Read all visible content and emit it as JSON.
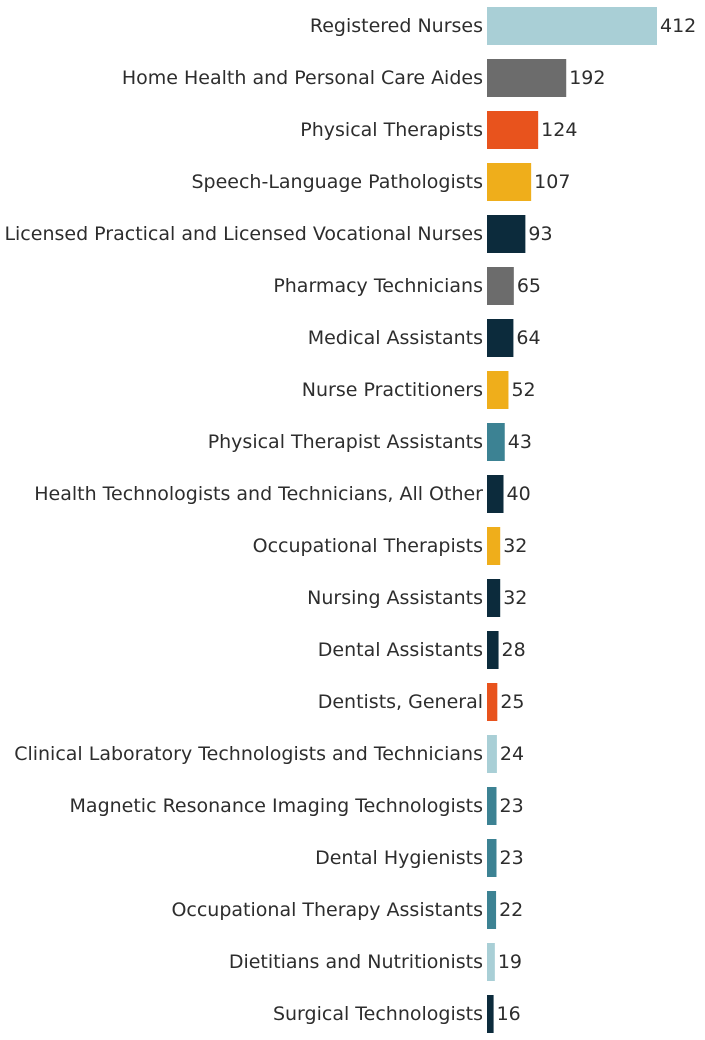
{
  "chart_data": {
    "type": "bar",
    "orientation": "horizontal",
    "title": "",
    "xlabel": "",
    "ylabel": "",
    "xlim": [
      0,
      412
    ],
    "grid": false,
    "categories": [
      "Registered Nurses",
      "Home Health and Personal Care Aides",
      "Physical Therapists",
      "Speech-Language Pathologists",
      "Licensed Practical and Licensed Vocational Nurses",
      "Pharmacy Technicians",
      "Medical Assistants",
      "Nurse Practitioners",
      "Physical Therapist Assistants",
      "Health Technologists and Technicians, All Other",
      "Occupational Therapists",
      "Nursing Assistants",
      "Dental Assistants",
      "Dentists, General",
      "Clinical Laboratory Technologists and Technicians",
      "Magnetic Resonance Imaging Technologists",
      "Dental Hygienists",
      "Occupational Therapy Assistants",
      "Dietitians and Nutritionists",
      "Surgical Technologists"
    ],
    "values": [
      412,
      192,
      124,
      107,
      93,
      65,
      64,
      52,
      43,
      40,
      32,
      32,
      28,
      25,
      24,
      23,
      23,
      22,
      19,
      16
    ],
    "colors": [
      "#a9cfd6",
      "#6c6c6c",
      "#e8531d",
      "#efae1b",
      "#0c2b3c",
      "#6c6c6c",
      "#0c2b3c",
      "#efae1b",
      "#3c8293",
      "#0c2b3c",
      "#efae1b",
      "#0c2b3c",
      "#0c2b3c",
      "#e8531d",
      "#a9cfd6",
      "#3c8293",
      "#3c8293",
      "#3c8293",
      "#a9cfd6",
      "#0c2b3c"
    ]
  }
}
